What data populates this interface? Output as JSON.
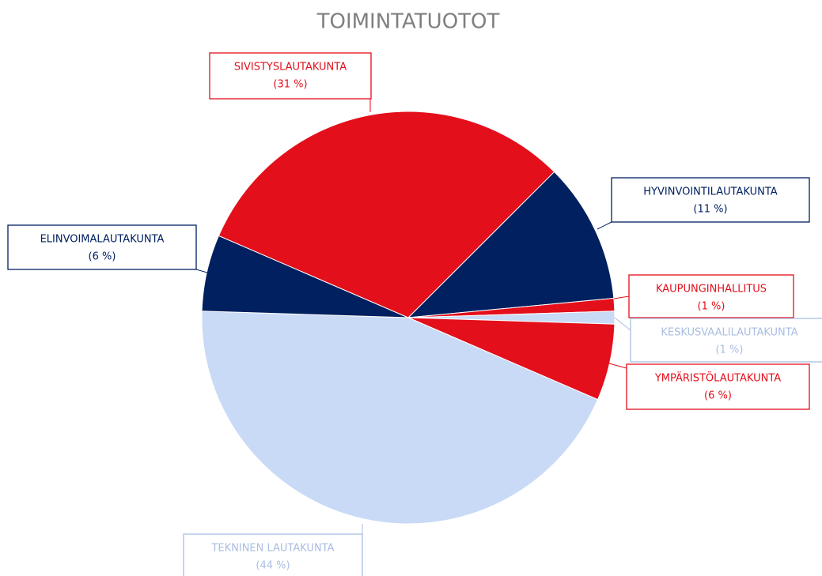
{
  "chart_data": {
    "type": "pie",
    "title": "TOIMINTATUOTOT",
    "categories": [
      "HYVINVOINTILAUTAKUNTA",
      "KAUPUNGINHALLITUS",
      "KESKUSVAALILAUTAKUNTA",
      "YMPÄRISTÖLAUTAKUNTA",
      "TEKNINEN LAUTAKUNTA",
      "ELINVOIMALAUTAKUNTA",
      "SIVISTYSLAUTAKUNTA"
    ],
    "values": [
      11,
      1,
      1,
      6,
      44,
      6,
      31
    ],
    "value_labels": [
      "(11 %)",
      "(1 %)",
      "(1 %)",
      "(6 %)",
      "(44 %)",
      "(6 %)",
      "(31 %)"
    ],
    "colors": [
      "#002060",
      "#e30f1b",
      "#c9daf6",
      "#e30f1b",
      "#c9daf6",
      "#002060",
      "#e30f1b"
    ]
  }
}
